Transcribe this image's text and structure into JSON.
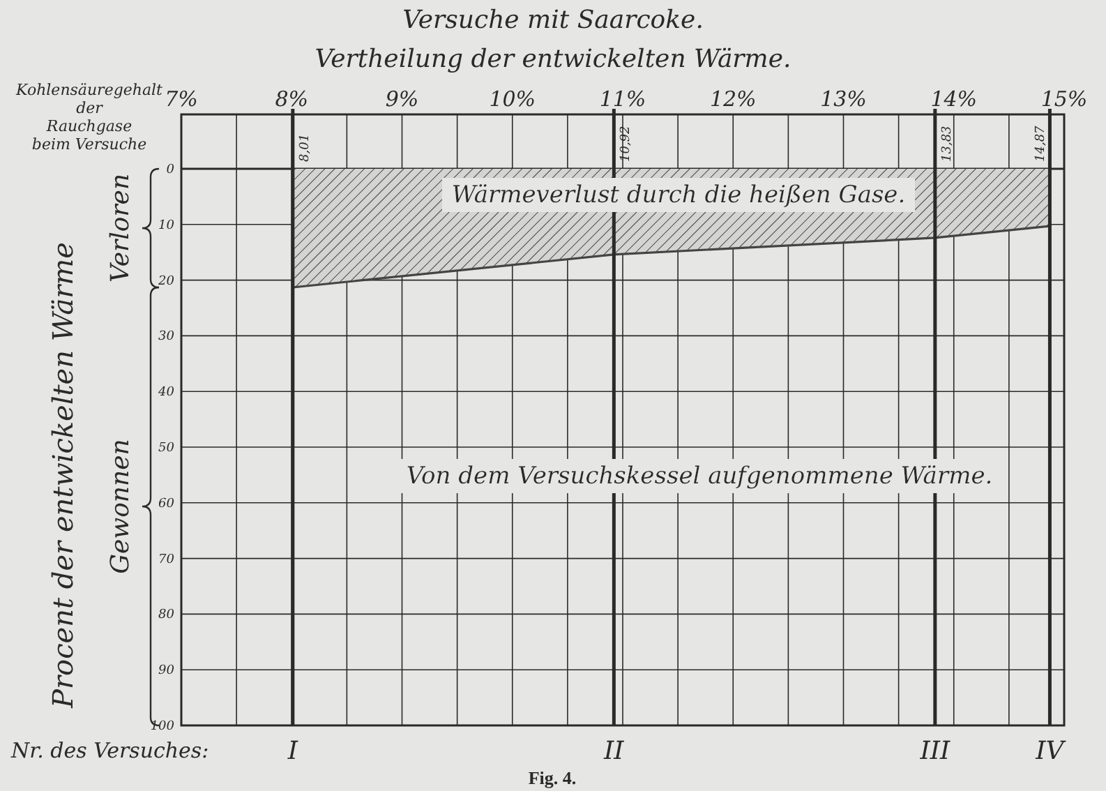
{
  "chart_data": {
    "type": "area",
    "title": "Versuche mit Saarcoke.",
    "subtitle": "Vertheilung der entwickelten Wärme.",
    "xlabel": "Kohlensäuregehalt der Rauchgase beim Versuche",
    "ylabel": "Procent der entwickelten Wärme",
    "x": [
      8.01,
      10.92,
      13.83,
      14.87
    ],
    "series": [
      {
        "color": "#444444",
        "values": [
          21.3,
          15.4,
          12.4,
          10.3
        ]
      }
    ],
    "xlim": [
      7,
      15
    ],
    "xticks": [
      {
        "value": 7,
        "label": "7%"
      },
      {
        "value": 7.5,
        "label": null
      },
      {
        "value": 8,
        "label": "8%"
      },
      {
        "value": 8.5,
        "label": null
      },
      {
        "value": 9,
        "label": "9%"
      },
      {
        "value": 9.5,
        "label": null
      },
      {
        "value": 10,
        "label": "10%"
      },
      {
        "value": 10.5,
        "label": null
      },
      {
        "value": 11,
        "label": "11%"
      },
      {
        "value": 11.5,
        "label": null
      },
      {
        "value": 12,
        "label": "12%"
      },
      {
        "value": 12.5,
        "label": null
      },
      {
        "value": 13,
        "label": "13%"
      },
      {
        "value": 13.5,
        "label": null
      },
      {
        "value": 14,
        "label": "14%"
      },
      {
        "value": 14.5,
        "label": null
      },
      {
        "value": 15,
        "label": "15%"
      }
    ],
    "ylim": [
      100,
      0
    ],
    "yticks": [
      0,
      10,
      20,
      30,
      40,
      50,
      60,
      70,
      80,
      90,
      100
    ],
    "grid": true,
    "ref_lines": [
      {
        "axis": "x",
        "value": 8.01,
        "label": "8,01"
      },
      {
        "axis": "x",
        "value": 10.92,
        "label": "10,92"
      },
      {
        "axis": "x",
        "value": 13.83,
        "label": "13,83"
      },
      {
        "axis": "x",
        "value": 14.87,
        "label": "14,87"
      }
    ],
    "annotations": [
      "Wärmeverlust durch die heißen Gase.",
      "Von dem Versuchskessel aufgenommene Wärme.",
      "I",
      "II",
      "III",
      "IV",
      "Verloren",
      "Gewonnen",
      "Nr. des Versuches:",
      "Fig. 4."
    ]
  }
}
